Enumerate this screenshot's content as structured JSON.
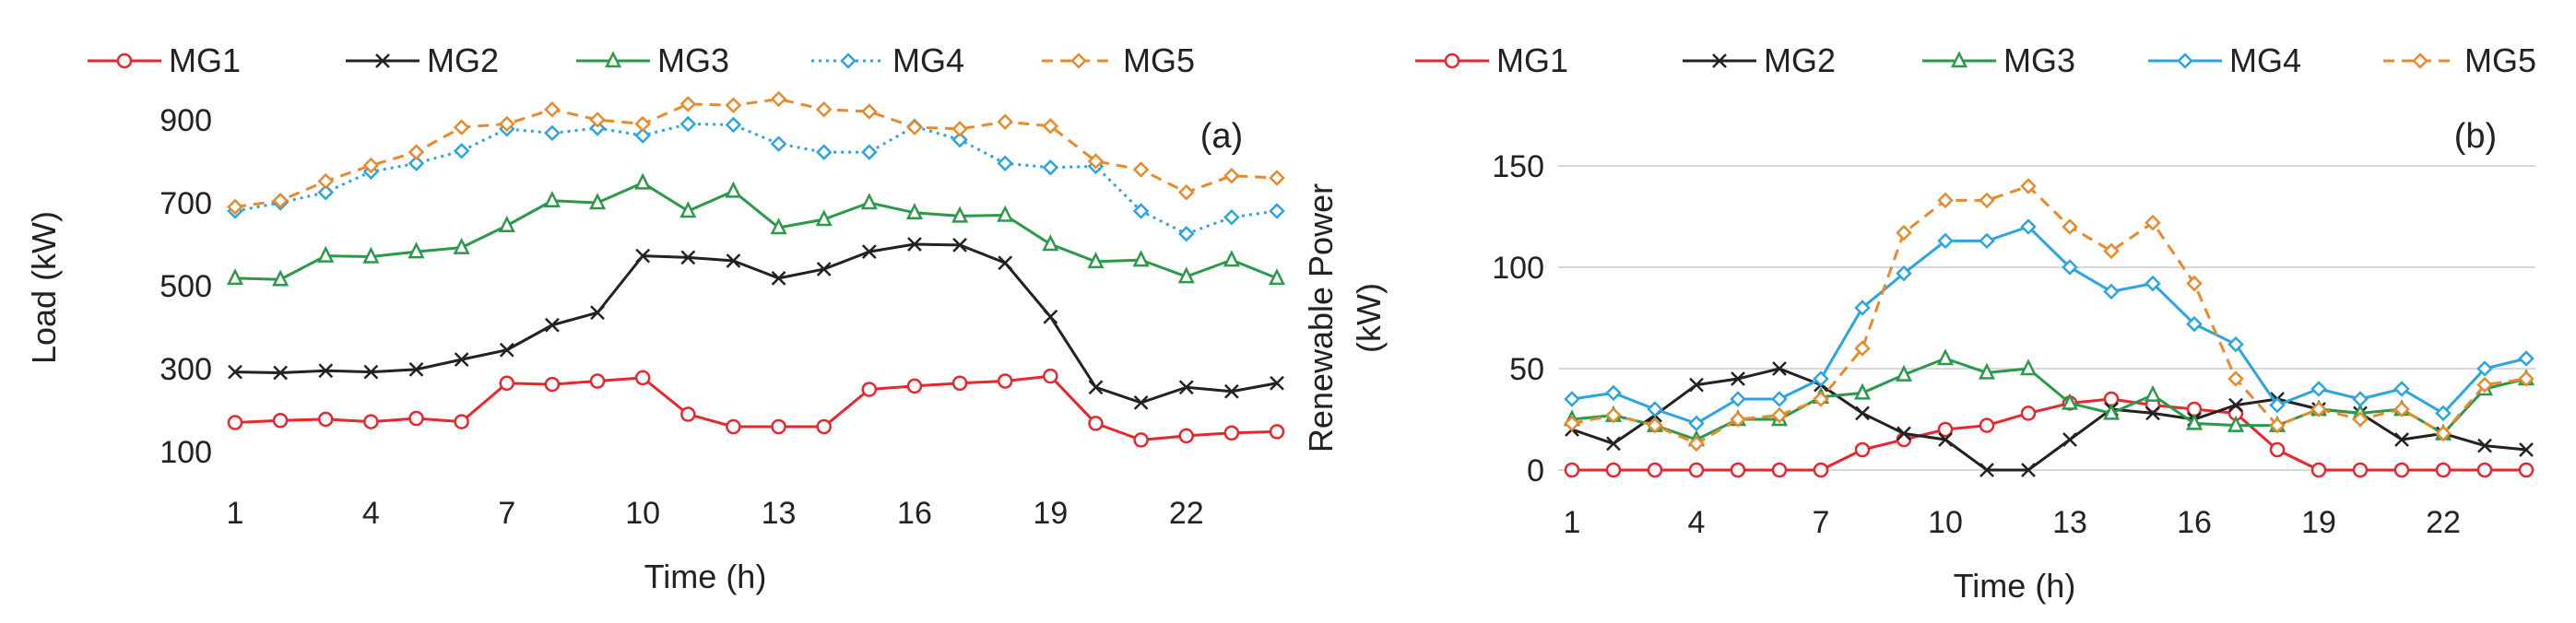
{
  "chart_data": [
    {
      "type": "line",
      "panel_label": "(a)",
      "xlabel": "Time (h)",
      "ylabel": "Load (kW)",
      "xlim": [
        1,
        24
      ],
      "ylim": [
        100,
        900
      ],
      "xticks": [
        1,
        4,
        7,
        10,
        13,
        16,
        19,
        22
      ],
      "yticks": [
        100,
        300,
        500,
        700,
        900
      ],
      "legend": "top",
      "x": [
        1,
        2,
        3,
        4,
        5,
        6,
        7,
        8,
        9,
        10,
        11,
        12,
        13,
        14,
        15,
        16,
        17,
        18,
        19,
        20,
        21,
        22,
        23,
        24
      ],
      "series": [
        {
          "name": "MG1",
          "color": "#e8262b",
          "dash": "solid",
          "marker": "circle",
          "values": [
            170,
            175,
            178,
            172,
            180,
            172,
            265,
            262,
            270,
            278,
            190,
            160,
            160,
            160,
            250,
            258,
            265,
            270,
            282,
            168,
            128,
            138,
            145,
            148
          ]
        },
        {
          "name": "MG2",
          "color": "#222222",
          "dash": "solid",
          "marker": "x",
          "values": [
            292,
            290,
            295,
            292,
            298,
            322,
            345,
            405,
            435,
            572,
            568,
            560,
            518,
            540,
            582,
            600,
            598,
            555,
            425,
            255,
            218,
            255,
            245,
            265
          ]
        },
        {
          "name": "MG3",
          "color": "#2a9a4a",
          "dash": "solid",
          "marker": "triangle",
          "values": [
            518,
            515,
            572,
            570,
            582,
            592,
            645,
            705,
            700,
            748,
            680,
            728,
            640,
            660,
            700,
            676,
            668,
            670,
            600,
            558,
            562,
            522,
            562,
            518
          ]
        },
        {
          "name": "MG4",
          "color": "#2aa5e0",
          "dash": "dotted",
          "marker": "diamond",
          "values": [
            680,
            700,
            725,
            775,
            795,
            825,
            878,
            868,
            880,
            862,
            890,
            888,
            842,
            822,
            822,
            884,
            852,
            795,
            785,
            788,
            680,
            625,
            665,
            680
          ]
        },
        {
          "name": "MG5",
          "color": "#e88a2a",
          "dash": "dashed",
          "marker": "diamond",
          "values": [
            690,
            705,
            752,
            790,
            822,
            882,
            890,
            925,
            900,
            890,
            938,
            935,
            950,
            925,
            920,
            882,
            878,
            895,
            885,
            800,
            780,
            725,
            765,
            760
          ]
        }
      ]
    },
    {
      "type": "line",
      "panel_label": "(b)",
      "xlabel": "Time (h)",
      "ylabel": "Renewable Power (kW)",
      "xlim": [
        1,
        24
      ],
      "ylim": [
        0,
        150
      ],
      "xticks": [
        1,
        4,
        7,
        10,
        13,
        16,
        19,
        22
      ],
      "yticks": [
        0,
        50,
        100,
        150
      ],
      "legend": "top",
      "x": [
        1,
        2,
        3,
        4,
        5,
        6,
        7,
        8,
        9,
        10,
        11,
        12,
        13,
        14,
        15,
        16,
        17,
        18,
        19,
        20,
        21,
        22,
        23,
        24
      ],
      "series": [
        {
          "name": "MG1",
          "color": "#e8262b",
          "dash": "solid",
          "marker": "circle",
          "values": [
            0,
            0,
            0,
            0,
            0,
            0,
            0,
            10,
            15,
            20,
            22,
            28,
            33,
            35,
            32,
            30,
            28,
            10,
            0,
            0,
            0,
            0,
            0,
            0
          ]
        },
        {
          "name": "MG2",
          "color": "#222222",
          "dash": "solid",
          "marker": "x",
          "values": [
            20,
            13,
            27,
            42,
            45,
            50,
            42,
            28,
            18,
            15,
            0,
            0,
            15,
            30,
            28,
            25,
            32,
            35,
            30,
            28,
            15,
            18,
            12,
            10
          ]
        },
        {
          "name": "MG3",
          "color": "#2a9a4a",
          "dash": "solid",
          "marker": "triangle",
          "values": [
            25,
            27,
            22,
            15,
            25,
            25,
            36,
            38,
            47,
            55,
            48,
            50,
            33,
            28,
            37,
            23,
            22,
            22,
            30,
            28,
            30,
            18,
            40,
            45
          ]
        },
        {
          "name": "MG4",
          "color": "#2aa5e0",
          "dash": "solid",
          "marker": "diamond",
          "values": [
            35,
            38,
            30,
            23,
            35,
            35,
            45,
            80,
            97,
            113,
            113,
            120,
            100,
            88,
            92,
            72,
            62,
            32,
            40,
            35,
            40,
            28,
            50,
            55
          ]
        },
        {
          "name": "MG5",
          "color": "#e88a2a",
          "dash": "dashed",
          "marker": "diamond",
          "values": [
            23,
            27,
            22,
            13,
            25,
            27,
            35,
            60,
            117,
            133,
            133,
            140,
            120,
            108,
            122,
            92,
            45,
            22,
            30,
            25,
            30,
            18,
            42,
            45
          ]
        }
      ]
    }
  ]
}
